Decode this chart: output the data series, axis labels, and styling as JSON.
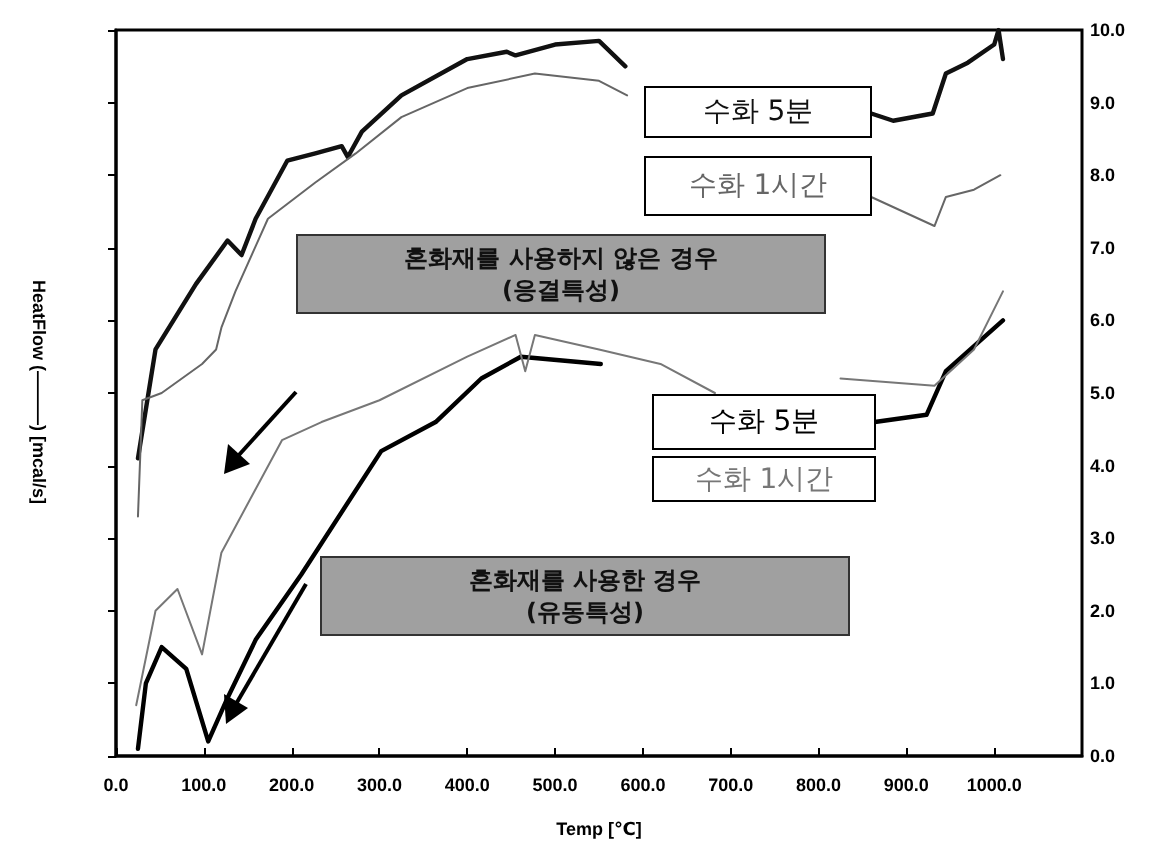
{
  "chart_data": {
    "type": "line",
    "xlabel": "Temp [℃]",
    "ylabel": "HeatFlow (———) [mcal/s]",
    "xlim": [
      0,
      1100
    ],
    "xticks": [
      {
        "value": 0,
        "label": "0.0"
      },
      {
        "value": 100,
        "label": "100.0"
      },
      {
        "value": 200,
        "label": "200.0"
      },
      {
        "value": 300,
        "label": "300.0"
      },
      {
        "value": 400,
        "label": "400.0"
      },
      {
        "value": 500,
        "label": "500.0"
      },
      {
        "value": 600,
        "label": "600.0"
      },
      {
        "value": 700,
        "label": "700.0"
      },
      {
        "value": 800,
        "label": "800.0"
      },
      {
        "value": 900,
        "label": "900.0"
      },
      {
        "value": 1000,
        "label": "1000.0"
      }
    ],
    "ylim": [
      0,
      10
    ],
    "yticks": [
      {
        "value": 0,
        "label": "0.0"
      },
      {
        "value": 1,
        "label": "1.0"
      },
      {
        "value": 2,
        "label": "2.0"
      },
      {
        "value": 3,
        "label": "3.0"
      },
      {
        "value": 4,
        "label": "4.0"
      },
      {
        "value": 5,
        "label": "5.0"
      },
      {
        "value": 6,
        "label": "6.0"
      },
      {
        "value": 7,
        "label": "7.0"
      },
      {
        "value": 8,
        "label": "8.0"
      },
      {
        "value": 9,
        "label": "9.0"
      },
      {
        "value": 10,
        "label": "10.0"
      }
    ],
    "grid": false,
    "legend": false,
    "marker": "none",
    "line_style": "solid",
    "series": [
      {
        "name": "수화 5분",
        "color": "#111111",
        "x": [
          25,
          45,
          91,
          127,
          143,
          159,
          195,
          227,
          257,
          264,
          280,
          325,
          400,
          445,
          455,
          500,
          550,
          580,
          740,
          860,
          885,
          930,
          945,
          970,
          1000,
          1005,
          1010
        ],
        "values": [
          4.1,
          5.6,
          6.5,
          7.1,
          6.9,
          7.4,
          8.2,
          8.3,
          8.4,
          8.25,
          8.6,
          9.1,
          9.6,
          9.7,
          9.65,
          9.8,
          9.85,
          9.5,
          null,
          8.85,
          8.75,
          8.85,
          9.4,
          9.55,
          9.8,
          10.0,
          9.6
        ]
      },
      {
        "name": "수화 1시간",
        "color": "#666666",
        "x": [
          25,
          30,
          52,
          98,
          114,
          120,
          136,
          173,
          227,
          273,
          325,
          400,
          477,
          550,
          582,
          700,
          860,
          932,
          945,
          977,
          1007
        ],
        "values": [
          3.3,
          4.9,
          5.0,
          5.4,
          5.6,
          5.9,
          6.4,
          7.4,
          7.9,
          8.3,
          8.8,
          9.2,
          9.4,
          9.3,
          9.1,
          null,
          7.7,
          7.3,
          7.7,
          7.8,
          8.0
        ]
      },
      {
        "name": "수화 5분",
        "color": "#000000",
        "x": [
          25,
          34,
          52,
          80,
          105,
          127,
          159,
          211,
          302,
          364,
          416,
          461,
          552,
          760,
          864,
          923,
          945,
          1010
        ],
        "values": [
          0.1,
          1.0,
          1.5,
          1.2,
          0.2,
          0.8,
          1.6,
          2.5,
          4.2,
          4.6,
          5.2,
          5.5,
          5.4,
          null,
          4.6,
          4.7,
          5.3,
          6.0
        ]
      },
      {
        "name": "수화 1시간",
        "color": "#777777",
        "x": [
          23,
          45,
          70,
          98,
          120,
          189,
          234,
          300,
          400,
          455,
          466,
          477,
          550,
          620,
          682,
          760,
          825,
          932,
          977,
          1010
        ],
        "values": [
          0.7,
          2.0,
          2.3,
          1.4,
          2.8,
          4.35,
          4.6,
          4.9,
          5.5,
          5.8,
          5.3,
          5.8,
          5.6,
          5.4,
          5.0,
          null,
          5.2,
          5.1,
          5.6,
          6.4
        ]
      }
    ],
    "annotations": [
      "혼화재를 사용하지 않은 경우\n(응결특성)",
      "혼화재를 사용한 경우\n(유동특성)"
    ]
  }
}
